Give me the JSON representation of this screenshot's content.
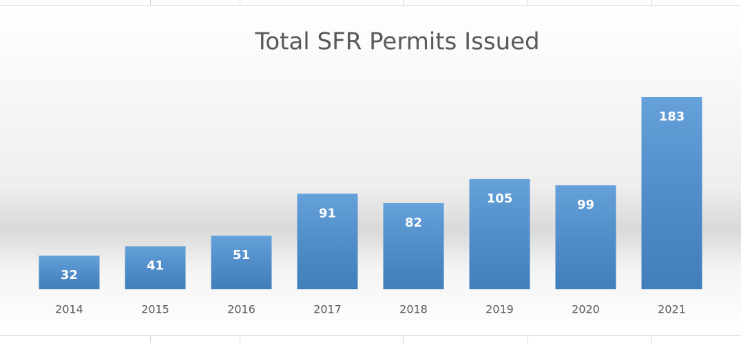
{
  "chart_data": {
    "type": "bar",
    "title": "Total SFR Permits Issued",
    "categories": [
      "2014",
      "2015",
      "2016",
      "2017",
      "2018",
      "2019",
      "2020",
      "2021"
    ],
    "values": [
      32,
      41,
      51,
      91,
      82,
      105,
      99,
      183
    ],
    "color": "#4a90d4"
  }
}
